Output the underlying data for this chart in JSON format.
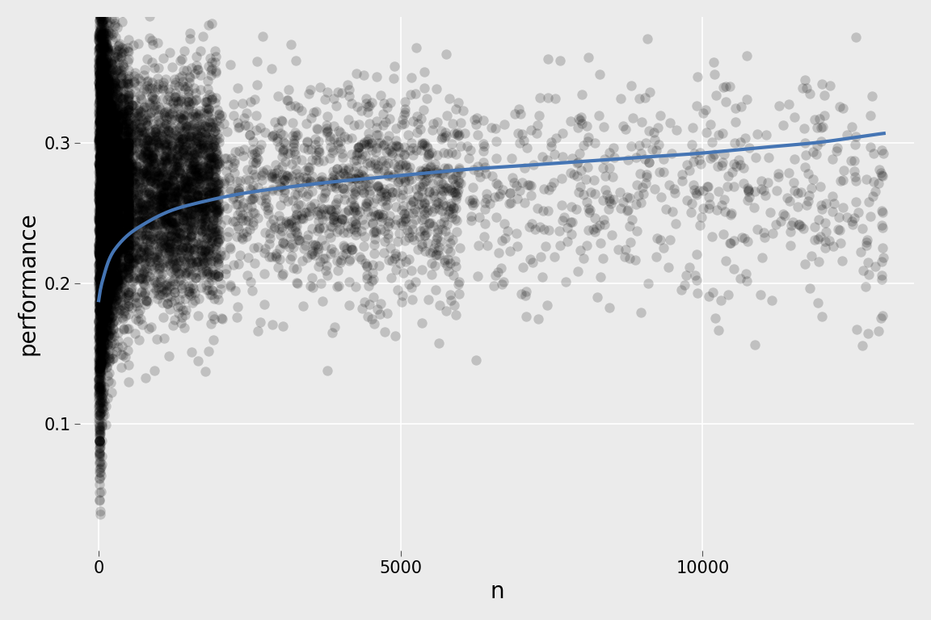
{
  "title": "",
  "xlabel": "n",
  "ylabel": "performance",
  "background_color": "#EBEBEB",
  "panel_color": "#EBEBEB",
  "grid_color": "#FFFFFF",
  "scatter_color": "#000000",
  "scatter_alpha": 0.18,
  "scatter_size": 80,
  "line_color": "#4575B4",
  "line_width": 3.0,
  "xlim": [
    -300,
    13500
  ],
  "ylim": [
    0.01,
    0.39
  ],
  "xticks": [
    0,
    5000,
    10000
  ],
  "yticks": [
    0.1,
    0.2,
    0.3
  ],
  "xlabel_fontsize": 20,
  "ylabel_fontsize": 20,
  "tick_fontsize": 15,
  "n_points": 10000,
  "seed": 42,
  "smooth_line_points": [
    [
      5,
      0.188
    ],
    [
      30,
      0.195
    ],
    [
      80,
      0.204
    ],
    [
      150,
      0.214
    ],
    [
      300,
      0.226
    ],
    [
      500,
      0.235
    ],
    [
      700,
      0.241
    ],
    [
      900,
      0.246
    ],
    [
      1200,
      0.252
    ],
    [
      1600,
      0.257
    ],
    [
      2000,
      0.261
    ],
    [
      2500,
      0.265
    ],
    [
      3000,
      0.268
    ],
    [
      4000,
      0.273
    ],
    [
      5000,
      0.277
    ],
    [
      6000,
      0.281
    ],
    [
      7000,
      0.284
    ],
    [
      8000,
      0.287
    ],
    [
      9000,
      0.29
    ],
    [
      10000,
      0.293
    ],
    [
      11000,
      0.297
    ],
    [
      12000,
      0.301
    ],
    [
      12500,
      0.304
    ],
    [
      13000,
      0.307
    ]
  ]
}
